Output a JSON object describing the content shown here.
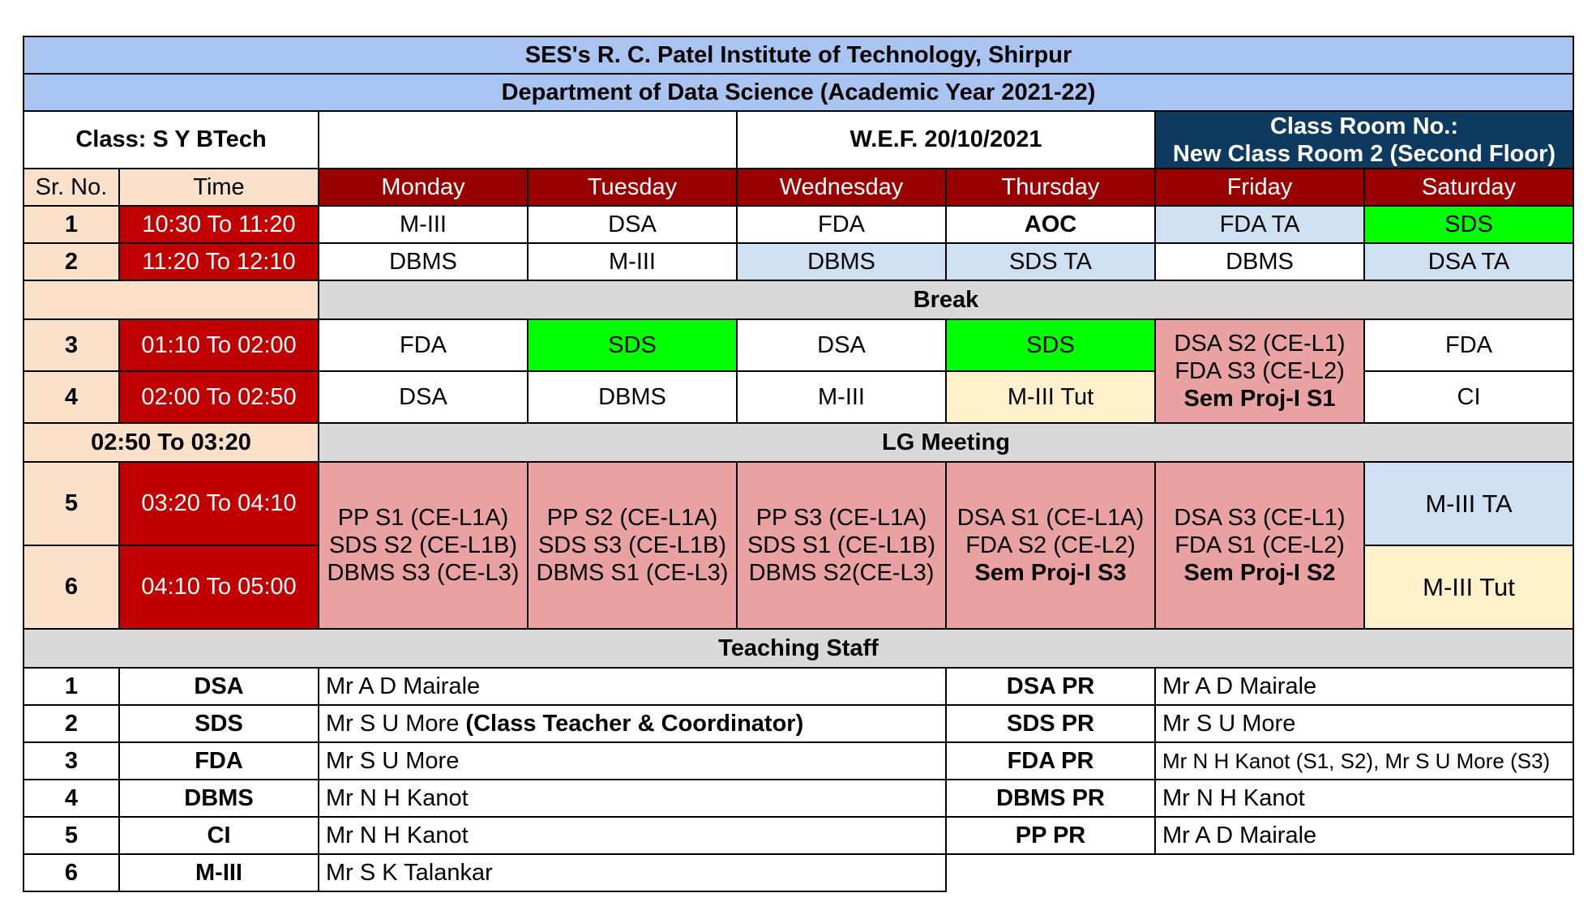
{
  "header": {
    "institute": "SES's R. C. Patel Institute of Technology, Shirpur",
    "department": "Department of Data Science (Academic Year 2021-22)",
    "class_label": "Class: S Y BTech",
    "wef": "W.E.F. 20/10/2021",
    "classroom_line1": "Class Room No.:",
    "classroom_line2": "New Class Room 2 (Second Floor)"
  },
  "columns": {
    "sr_no": "Sr. No.",
    "time": "Time",
    "days": [
      "Monday",
      "Tuesday",
      "Wednesday",
      "Thursday",
      "Friday",
      "Saturday"
    ]
  },
  "slots": [
    {
      "sr": "1",
      "time": "10:30 To 11:20",
      "cells": [
        "M-III",
        "DSA",
        "FDA",
        "AOC",
        "FDA TA",
        "SDS"
      ]
    },
    {
      "sr": "2",
      "time": "11:20 To 12:10",
      "cells": [
        "DBMS",
        "M-III",
        "DBMS",
        "SDS TA",
        "DBMS",
        "DSA TA"
      ]
    },
    {
      "sr": "3",
      "time": "01:10 To 02:00",
      "cells": [
        "FDA",
        "SDS",
        "DSA",
        "SDS",
        "",
        "FDA"
      ]
    },
    {
      "sr": "4",
      "time": "02:00 To 02:50",
      "cells": [
        "DSA",
        "DBMS",
        "M-III",
        "M-III Tut",
        "",
        "CI"
      ]
    },
    {
      "sr": "5",
      "time": "03:20 To 04:10",
      "saturday": "M-III TA"
    },
    {
      "sr": "6",
      "time": "04:10 To 05:00",
      "saturday": "M-III Tut"
    }
  ],
  "break_label": "Break",
  "lg_time": "02:50 To 03:20",
  "lg_label": "LG Meeting",
  "friday_afternoon": [
    "DSA S2 (CE-L1)",
    "FDA S3 (CE-L2)",
    "Sem Proj-I S1"
  ],
  "late_labs": [
    [
      "PP S1 (CE-L1A)",
      "SDS S2 (CE-L1B)",
      "DBMS S3 (CE-L3)"
    ],
    [
      "PP S2 (CE-L1A)",
      "SDS S3 (CE-L1B)",
      "DBMS S1 (CE-L3)"
    ],
    [
      "PP S3 (CE-L1A)",
      "SDS S1 (CE-L1B)",
      "DBMS S2(CE-L3)"
    ],
    [
      "DSA S1 (CE-L1A)",
      "FDA S2 (CE-L2)",
      "Sem Proj-I S3"
    ],
    [
      "DSA S3 (CE-L1)",
      "FDA S1 (CE-L2)",
      "Sem Proj-I S2"
    ]
  ],
  "staff_title": "Teaching Staff",
  "staff": [
    {
      "no": "1",
      "subject": "DSA",
      "teacher": "Mr A D Mairale",
      "teacher_extra": "",
      "pr": "DSA PR",
      "pr_teacher": "Mr A D Mairale"
    },
    {
      "no": "2",
      "subject": "SDS",
      "teacher": "Mr S U More ",
      "teacher_extra": "(Class Teacher & Coordinator)",
      "pr": "SDS PR",
      "pr_teacher": "Mr S U More"
    },
    {
      "no": "3",
      "subject": "FDA",
      "teacher": "Mr S U More",
      "teacher_extra": "",
      "pr": "FDA PR",
      "pr_teacher": "Mr N H Kanot (S1, S2), Mr S U More (S3)"
    },
    {
      "no": "4",
      "subject": "DBMS",
      "teacher": "Mr N H Kanot",
      "teacher_extra": "",
      "pr": "DBMS PR",
      "pr_teacher": "Mr N H Kanot"
    },
    {
      "no": "5",
      "subject": "CI",
      "teacher": "Mr N H Kanot",
      "teacher_extra": "",
      "pr": "PP PR",
      "pr_teacher": "Mr A D Mairale"
    },
    {
      "no": "6",
      "subject": "M-III",
      "teacher": "Mr S K Talankar",
      "teacher_extra": "",
      "pr": "",
      "pr_teacher": ""
    }
  ]
}
